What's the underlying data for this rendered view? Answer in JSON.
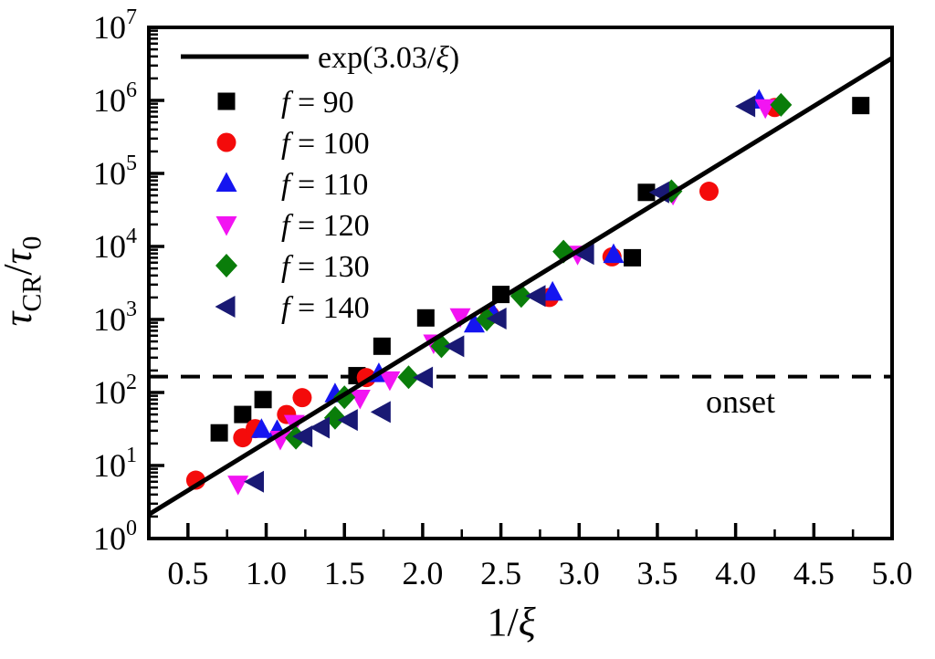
{
  "figure": {
    "background": "#ffffff"
  },
  "chart_data": {
    "type": "scatter",
    "title": "",
    "x_axis": {
      "label": "1/ξ",
      "label_parts": [
        {
          "t": "1/",
          "s": "n"
        },
        {
          "t": "ξ",
          "s": "i"
        }
      ],
      "scale": "linear",
      "min": 0.25,
      "max": 5.0,
      "major_ticks": [
        0.5,
        1.0,
        1.5,
        2.0,
        2.5,
        3.0,
        3.5,
        4.0,
        4.5,
        5.0
      ],
      "tick_labels": [
        "0.5",
        "1.0",
        "1.5",
        "2.0",
        "2.5",
        "3.0",
        "3.5",
        "4.0",
        "4.5",
        "5.0"
      ],
      "minor_ticks": [
        0.75,
        1.25,
        1.75,
        2.25,
        2.75,
        3.25,
        3.75,
        4.25,
        4.75
      ]
    },
    "y_axis": {
      "label": "τCR/τ0",
      "label_parts": [
        {
          "t": "τ",
          "s": "i"
        },
        {
          "t": "CR",
          "s": "sub"
        },
        {
          "t": "/",
          "s": "n"
        },
        {
          "t": "τ",
          "s": "i"
        },
        {
          "t": "0",
          "s": "sub"
        }
      ],
      "scale": "log",
      "min_exp": 0,
      "max_exp": 7,
      "tick_base": "10",
      "tick_exponents": [
        "0",
        "1",
        "2",
        "3",
        "4",
        "5",
        "6",
        "7"
      ]
    },
    "fit_line": {
      "label": "exp(3.03/ξ)",
      "coefficient": 3.03,
      "x_start": 0.25,
      "x_end": 5.0,
      "color": "#000000",
      "style": "solid"
    },
    "onset_line": {
      "label": "onset",
      "y": 165,
      "color": "#000000",
      "style": "dashed"
    },
    "legend": [
      {
        "symbol": "line",
        "color": "#000000",
        "label": "exp(3.03/ξ)"
      },
      {
        "symbol": "square",
        "color": "#000000",
        "label": "f = 90"
      },
      {
        "symbol": "circle",
        "color": "#f40b0b",
        "label": "f = 100"
      },
      {
        "symbol": "triangle-up",
        "color": "#1515f0",
        "label": "f = 110"
      },
      {
        "symbol": "triangle-down",
        "color": "#f214f2",
        "label": "f = 120"
      },
      {
        "symbol": "diamond",
        "color": "#0a7d0a",
        "label": "f = 130"
      },
      {
        "symbol": "triangle-left",
        "color": "#191974",
        "label": "f = 140"
      }
    ],
    "series": [
      {
        "name": "f = 90",
        "marker": "square",
        "color": "#000000",
        "points": [
          [
            0.7,
            28
          ],
          [
            0.85,
            50
          ],
          [
            0.98,
            80
          ],
          [
            1.58,
            170
          ],
          [
            1.74,
            430
          ],
          [
            2.02,
            1050
          ],
          [
            2.5,
            2200
          ],
          [
            3.34,
            7000
          ],
          [
            3.43,
            55000
          ],
          [
            4.8,
            850000
          ]
        ]
      },
      {
        "name": "f = 100",
        "marker": "circle",
        "color": "#f40b0b",
        "points": [
          [
            0.55,
            6.3
          ],
          [
            0.85,
            24
          ],
          [
            0.93,
            32
          ],
          [
            1.13,
            50
          ],
          [
            1.23,
            85
          ],
          [
            1.64,
            160
          ],
          [
            2.43,
            1150
          ],
          [
            2.81,
            2000
          ],
          [
            3.21,
            7200
          ],
          [
            3.83,
            57000
          ],
          [
            4.25,
            800000
          ]
        ]
      },
      {
        "name": "f = 110",
        "marker": "triangle-up",
        "color": "#1515f0",
        "points": [
          [
            0.97,
            31
          ],
          [
            1.07,
            30
          ],
          [
            1.44,
            95
          ],
          [
            1.72,
            180
          ],
          [
            2.33,
            860
          ],
          [
            2.45,
            1200
          ],
          [
            2.83,
            2350
          ],
          [
            3.22,
            7700
          ],
          [
            4.15,
            1000000
          ]
        ]
      },
      {
        "name": "f = 120",
        "marker": "triangle-down",
        "color": "#f214f2",
        "points": [
          [
            0.82,
            5.6
          ],
          [
            1.09,
            23
          ],
          [
            1.18,
            38
          ],
          [
            1.6,
            84
          ],
          [
            1.79,
            150
          ],
          [
            2.07,
            480
          ],
          [
            2.24,
            1100
          ],
          [
            2.99,
            7900
          ],
          [
            3.6,
            52000
          ],
          [
            4.19,
            800000
          ]
        ]
      },
      {
        "name": "f = 130",
        "marker": "diamond",
        "color": "#0a7d0a",
        "points": [
          [
            1.19,
            24
          ],
          [
            1.44,
            45
          ],
          [
            1.5,
            86
          ],
          [
            1.91,
            162
          ],
          [
            2.12,
            430
          ],
          [
            2.41,
            1000
          ],
          [
            2.63,
            2100
          ],
          [
            2.9,
            8500
          ],
          [
            3.59,
            57000
          ],
          [
            4.29,
            870000
          ]
        ]
      },
      {
        "name": "f = 140",
        "marker": "triangle-left",
        "color": "#191974",
        "points": [
          [
            0.93,
            6.0
          ],
          [
            1.24,
            25
          ],
          [
            1.35,
            33
          ],
          [
            1.53,
            42
          ],
          [
            1.74,
            54
          ],
          [
            2.01,
            160
          ],
          [
            2.21,
            430
          ],
          [
            2.48,
            1030
          ],
          [
            2.73,
            2100
          ],
          [
            3.04,
            7900
          ],
          [
            3.52,
            55000
          ],
          [
            4.07,
            830000
          ]
        ]
      }
    ],
    "layout_hints": {
      "legend_position": "top-left-inside",
      "grid": false,
      "onset_label_position": "right-below-dashed-line"
    }
  }
}
